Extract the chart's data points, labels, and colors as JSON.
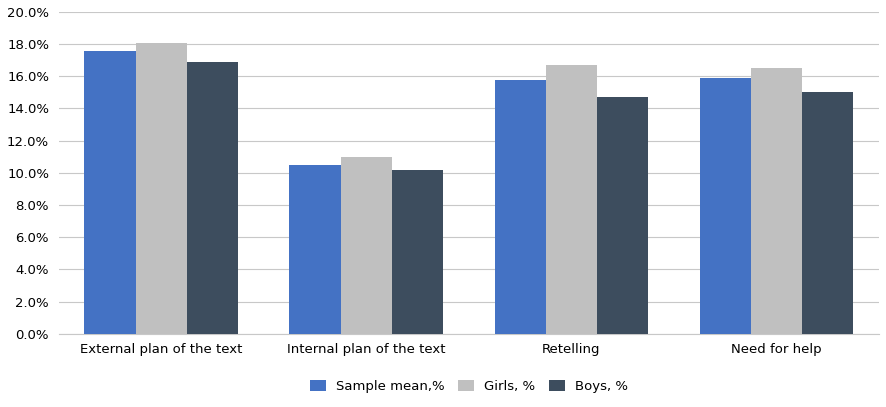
{
  "categories": [
    "External plan of the text",
    "Internal plan of the text",
    "Retelling",
    "Need for help"
  ],
  "series": {
    "Sample mean,%": [
      0.176,
      0.105,
      0.158,
      0.159
    ],
    "Girls, %": [
      0.181,
      0.11,
      0.167,
      0.165
    ],
    "Boys, %": [
      0.169,
      0.102,
      0.147,
      0.15
    ]
  },
  "colors": {
    "Sample mean,%": "#4472C4",
    "Girls, %": "#C0C0C0",
    "Boys, %": "#3D4D5E"
  },
  "hatch": {
    "Sample mean,%": "",
    "Girls, %": "....",
    "Boys, %": ""
  },
  "ylim": [
    0,
    0.2
  ],
  "yticks": [
    0.0,
    0.02,
    0.04,
    0.06,
    0.08,
    0.1,
    0.12,
    0.14,
    0.16,
    0.18,
    0.2
  ],
  "bar_width": 0.25,
  "legend_labels": [
    "Sample mean,%",
    "Girls, %",
    "Boys, %"
  ],
  "background_color": "#FFFFFF",
  "grid_color": "#C8C8C8",
  "figsize": [
    8.86,
    4.07
  ],
  "dpi": 100
}
